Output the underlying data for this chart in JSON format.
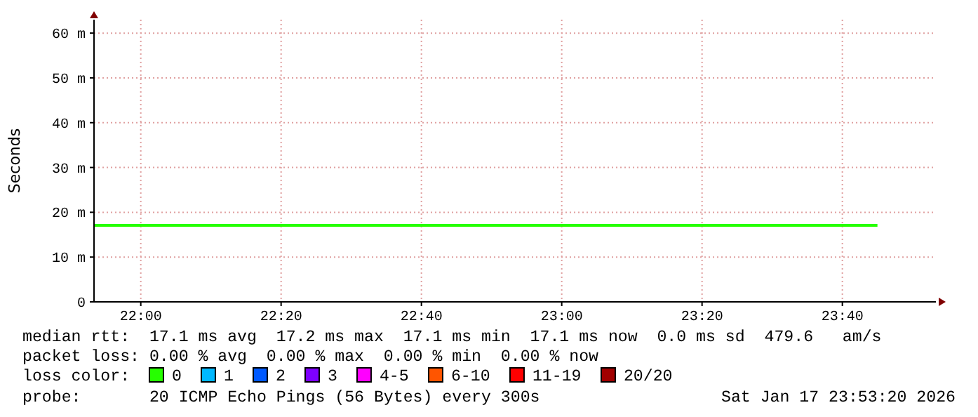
{
  "chart_data": {
    "type": "line",
    "ylabel": "Seconds",
    "xlim": [
      21.888889,
      23.888889
    ],
    "xticks": [
      {
        "value": 22,
        "label": "22:00"
      },
      {
        "value": 22.333333,
        "label": "22:20"
      },
      {
        "value": 22.666667,
        "label": "22:40"
      },
      {
        "value": 23,
        "label": "23:00"
      },
      {
        "value": 23.333333,
        "label": "23:20"
      },
      {
        "value": 23.666667,
        "label": "23:40"
      }
    ],
    "ylim": [
      0,
      63
    ],
    "yticks": [
      0,
      {
        "value": 10,
        "label": "10 m"
      },
      {
        "value": 20,
        "label": "20 m"
      },
      {
        "value": 30,
        "label": "30 m"
      },
      {
        "value": 40,
        "label": "40 m"
      },
      {
        "value": 50,
        "label": "50 m"
      },
      {
        "value": 60,
        "label": "60 m"
      }
    ],
    "x": [
      21.888889,
      23.75
    ],
    "grid": true,
    "legend": "bottom",
    "legend_title": "loss color:",
    "marker": "none",
    "line_style": "solid",
    "series": [
      {
        "name": "0",
        "color": "#26ff00",
        "values": [
          17.1,
          17.1
        ]
      },
      {
        "name": "1",
        "color": "#00b8ff",
        "values": [
          null,
          null
        ]
      },
      {
        "name": "2",
        "color": "#0059ff",
        "values": [
          null,
          null
        ]
      },
      {
        "name": "3",
        "color": "#7e00ff",
        "values": [
          null,
          null
        ]
      },
      {
        "name": "4-5",
        "color": "#ff00ff",
        "values": [
          null,
          null
        ]
      },
      {
        "name": "6-10",
        "color": "#ff5500",
        "values": [
          null,
          null
        ]
      },
      {
        "name": "11-19",
        "color": "#ff0000",
        "values": [
          null,
          null
        ]
      },
      {
        "name": "20/20",
        "color": "#a10000",
        "values": [
          null,
          null
        ]
      }
    ],
    "annotations": [
      "median rtt:  17.1 ms avg  17.2 ms max  17.1 ms min  17.1 ms now  0.0 ms sd  479.6   am/s",
      "packet loss: 0.00 % avg  0.00 % max  0.00 % min  0.00 % now",
      "probe:       20 ICMP Echo Pings (56 Bytes) every 300s",
      "Sat Jan 17 23:53:20 2026"
    ]
  }
}
